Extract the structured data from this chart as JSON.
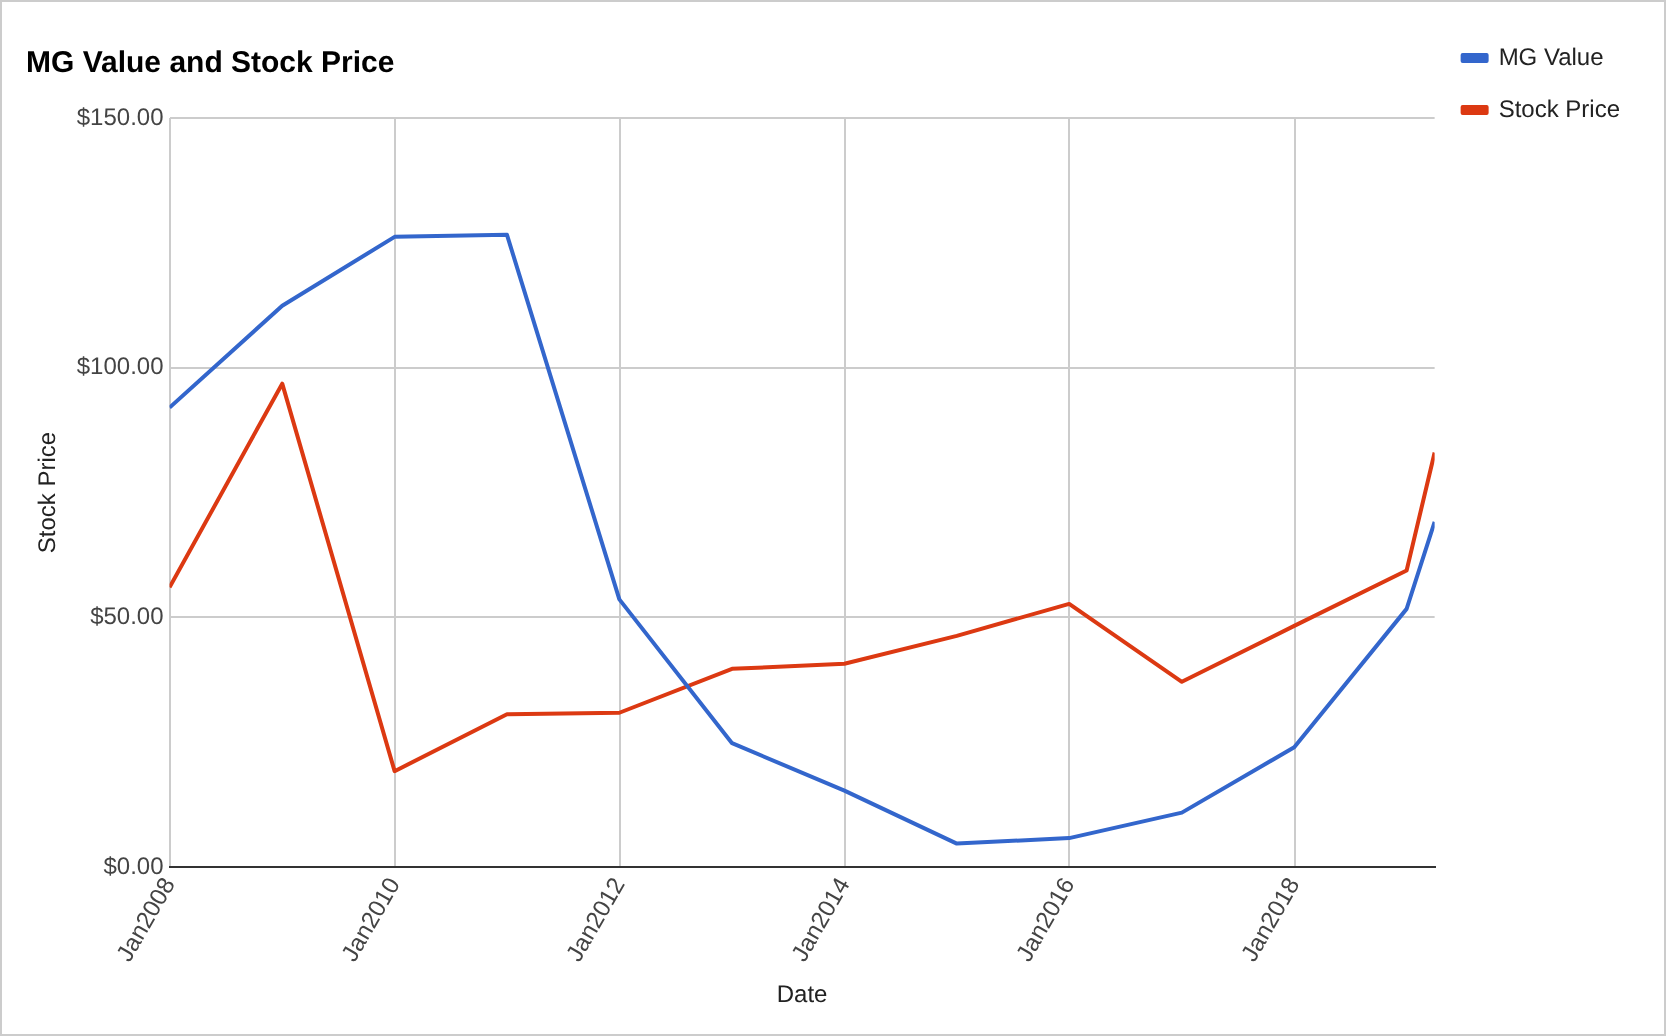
{
  "chart_data": {
    "type": "line",
    "title": "MG Value and Stock Price",
    "xlabel": "Date",
    "ylabel": "Stock Price",
    "x": [
      "2007-12-31",
      "2008-12-31",
      "2009-12-31",
      "2010-12-31",
      "2011-12-31",
      "2012-12-31",
      "2013-12-31",
      "2014-12-31",
      "2015-12-31",
      "2016-12-31",
      "2017-12-31",
      "2018-12-31",
      "2019-04-01"
    ],
    "series": [
      {
        "name": "MG Value",
        "color": "#3366cc",
        "values": [
          92.0,
          112.4,
          126.2,
          126.6,
          53.6,
          24.8,
          15.3,
          4.7,
          5.8,
          10.9,
          24.0,
          51.7,
          69.1
        ]
      },
      {
        "name": "Stock Price",
        "color": "#dc3912",
        "values": [
          56.0,
          96.8,
          19.2,
          30.6,
          30.9,
          39.7,
          40.7,
          46.3,
          52.7,
          37.1,
          48.3,
          59.4,
          83.0
        ]
      }
    ],
    "xlim": [
      "2007-12-31",
      "2019-04-01"
    ],
    "xticks": [
      {
        "value": "2008-01-01",
        "label": "Jan2008"
      },
      {
        "value": "2010-01-01",
        "label": "Jan2010"
      },
      {
        "value": "2012-01-01",
        "label": "Jan2012"
      },
      {
        "value": "2014-01-01",
        "label": "Jan2014"
      },
      {
        "value": "2016-01-01",
        "label": "Jan2016"
      },
      {
        "value": "2018-01-01",
        "label": "Jan2018"
      }
    ],
    "ylim": [
      0,
      150
    ],
    "yticks": [
      {
        "value": 0,
        "label": "$0.00"
      },
      {
        "value": 50,
        "label": "$50.00"
      },
      {
        "value": 100,
        "label": "$100.00"
      },
      {
        "value": 150,
        "label": "$150.00"
      }
    ],
    "grid": true,
    "legend": "top right",
    "marker": "none",
    "line_style": "solid"
  }
}
